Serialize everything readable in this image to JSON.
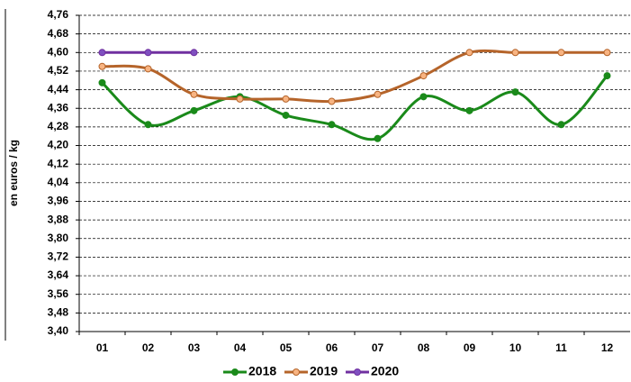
{
  "chart_data": {
    "type": "line",
    "y_label": "en euros / kg",
    "categories": [
      "01",
      "02",
      "03",
      "04",
      "05",
      "06",
      "07",
      "08",
      "09",
      "10",
      "11",
      "12"
    ],
    "series": [
      {
        "name": "2018",
        "color": "#1a8a1a",
        "marker_fill": "#1a8a1a",
        "values": [
          4.47,
          4.29,
          4.35,
          4.41,
          4.33,
          4.29,
          4.23,
          4.41,
          4.35,
          4.43,
          4.29,
          4.5
        ]
      },
      {
        "name": "2019",
        "color": "#b5642a",
        "marker_fill": "#f8b482",
        "values": [
          4.54,
          4.53,
          4.42,
          4.4,
          4.4,
          4.39,
          4.42,
          4.5,
          4.6,
          4.6,
          4.6,
          4.6
        ]
      },
      {
        "name": "2020",
        "color": "#7030a0",
        "marker_fill": "#7f50c0",
        "values": [
          4.6,
          4.6,
          4.6,
          null,
          null,
          null,
          null,
          null,
          null,
          null,
          null,
          null
        ]
      }
    ],
    "ylim": [
      3.4,
      4.76
    ],
    "yticks": [
      {
        "value": 3.4,
        "label": "3,40"
      },
      {
        "value": 3.48,
        "label": "3,48"
      },
      {
        "value": 3.56,
        "label": "3,56"
      },
      {
        "value": 3.64,
        "label": "3,64"
      },
      {
        "value": 3.72,
        "label": "3,72"
      },
      {
        "value": 3.8,
        "label": "3,80"
      },
      {
        "value": 3.88,
        "label": "3,88"
      },
      {
        "value": 3.96,
        "label": "3,96"
      },
      {
        "value": 4.04,
        "label": "4,04"
      },
      {
        "value": 4.12,
        "label": "4,12"
      },
      {
        "value": 4.2,
        "label": "4,20"
      },
      {
        "value": 4.28,
        "label": "4,28"
      },
      {
        "value": 4.36,
        "label": "4,36"
      },
      {
        "value": 4.44,
        "label": "4,44"
      },
      {
        "value": 4.52,
        "label": "4,52"
      },
      {
        "value": 4.6,
        "label": "4,60"
      },
      {
        "value": 4.68,
        "label": "4,68"
      },
      {
        "value": 4.76,
        "label": "4,76"
      }
    ],
    "grid": true,
    "smooth": true,
    "legend": "bottom"
  }
}
